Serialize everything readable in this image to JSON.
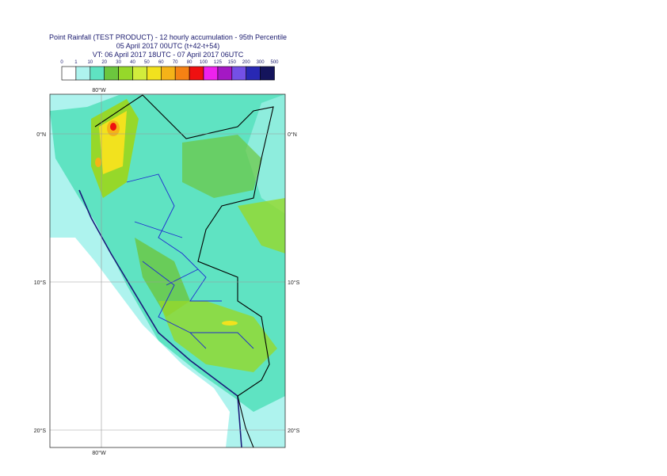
{
  "header": {
    "lines": [
      "Point Rainfall (TEST PRODUCT) - 12 hourly accumulation - 95th Percentile",
      "05 April 2017 00UTC (t+42-t+54)",
      "VT: 06 April 2017 18UTC - 07 April 2017 06UTC"
    ]
  },
  "legend": {
    "labels": [
      0,
      1,
      10,
      20,
      30,
      40,
      50,
      60,
      70,
      80,
      100,
      125,
      150,
      200,
      300,
      500
    ],
    "colors": [
      "#ffffff",
      "#aef3ee",
      "#5fe3c2",
      "#6cc63e",
      "#96d82a",
      "#d2ec3c",
      "#f2e21e",
      "#f5b318",
      "#f58214",
      "#ef1010",
      "#ee22ee",
      "#a418c4",
      "#7450e6",
      "#2828b4",
      "#14145c"
    ]
  },
  "map": {
    "lon_top": "80°W",
    "lon_bottom": "80°W",
    "lat_left": [
      "0°N",
      "10°S",
      "20°S"
    ],
    "lat_right": [
      "0°N",
      "10°S",
      "20°S"
    ]
  }
}
